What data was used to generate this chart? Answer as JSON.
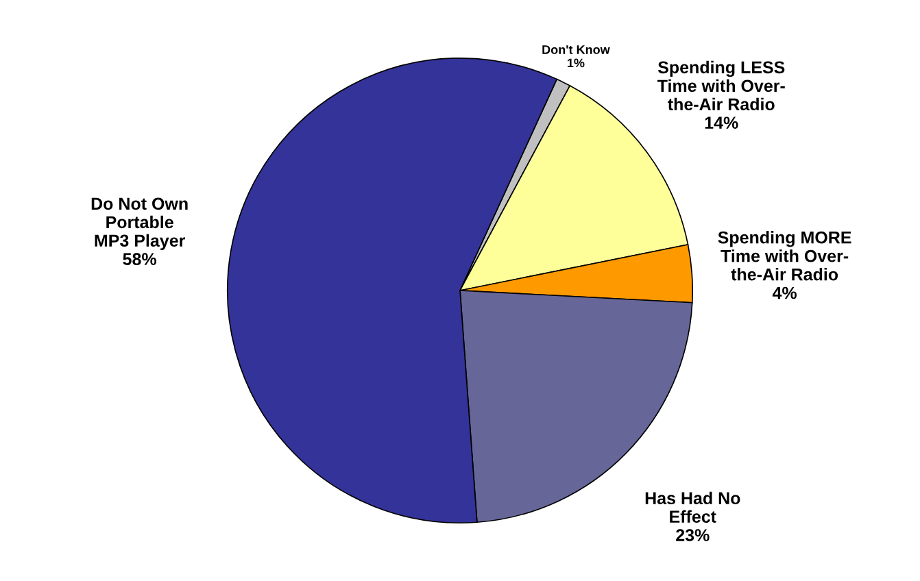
{
  "chart_data": {
    "type": "pie",
    "categories": [
      "Don't Know",
      "Spending LESS\nTime with Over-\nthe-Air Radio",
      "Spending MORE\nTime with Over-\nthe-Air Radio",
      "Has Had No\nEffect",
      "Do Not Own\nPortable\nMP3 Player"
    ],
    "values": [
      1,
      14,
      4,
      23,
      58
    ],
    "colors": [
      "#c0c0c0",
      "#ffff99",
      "#ff9900",
      "#666699",
      "#333399"
    ],
    "value_labels": [
      "1%",
      "14%",
      "4%",
      "23%",
      "58%"
    ],
    "legend": false
  }
}
